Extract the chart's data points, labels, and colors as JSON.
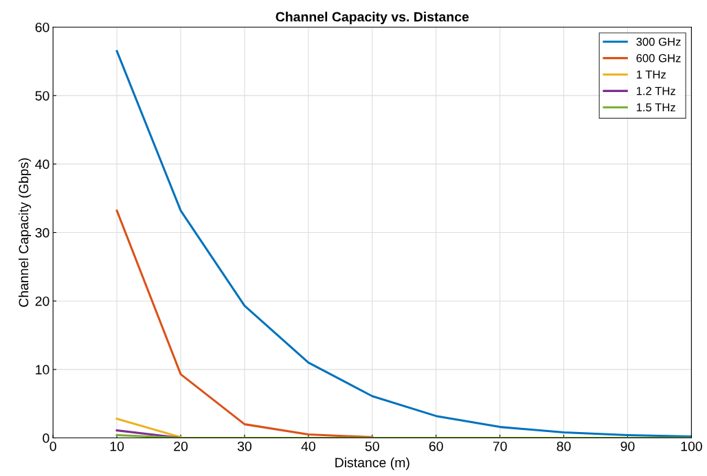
{
  "chart_data": {
    "type": "line",
    "title": "Channel Capacity vs. Distance",
    "xlabel": "Distance (m)",
    "ylabel": "Channel Capacity (Gbps)",
    "x": [
      10,
      20,
      30,
      40,
      50,
      60,
      70,
      80,
      90,
      100
    ],
    "series": [
      {
        "name": "300 GHz",
        "color": "#0072bd",
        "values": [
          56.5,
          33.2,
          19.3,
          11.0,
          6.1,
          3.2,
          1.6,
          0.8,
          0.4,
          0.2
        ]
      },
      {
        "name": "600 GHz",
        "color": "#d95319",
        "values": [
          33.2,
          9.3,
          2.0,
          0.5,
          0.1,
          null,
          null,
          null,
          null,
          null
        ]
      },
      {
        "name": "1 THz",
        "color": "#edb120",
        "values": [
          2.8,
          0.1,
          null,
          null,
          null,
          null,
          null,
          null,
          null,
          null
        ]
      },
      {
        "name": "1.2 THz",
        "color": "#7e2f8e",
        "values": [
          1.1,
          0,
          null,
          null,
          null,
          null,
          null,
          null,
          null,
          null
        ]
      },
      {
        "name": "1.5 THz",
        "color": "#77ac30",
        "values": [
          0.4,
          0,
          0,
          0,
          0,
          0,
          0,
          0,
          0,
          0
        ]
      }
    ],
    "xlim": [
      0,
      100
    ],
    "xticks": [
      0,
      10,
      20,
      30,
      40,
      50,
      60,
      70,
      80,
      90,
      100
    ],
    "ylim": [
      0,
      60
    ],
    "yticks": [
      0,
      10,
      20,
      30,
      40,
      50,
      60
    ],
    "grid": true,
    "legend": "top right"
  }
}
